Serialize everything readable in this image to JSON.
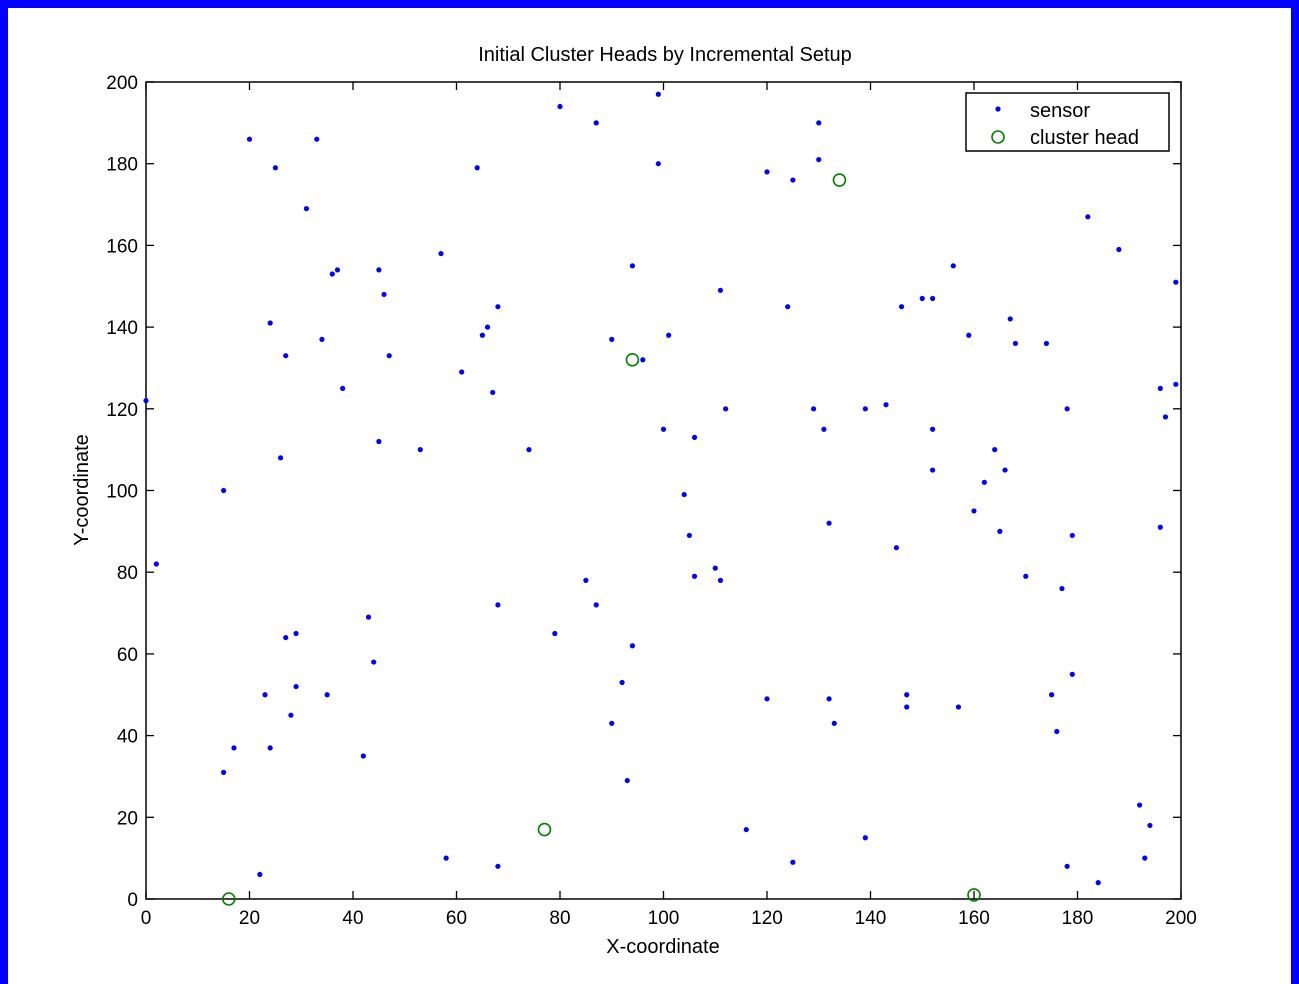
{
  "chart_data": {
    "type": "scatter",
    "title": "Initial Cluster Heads by Incremental Setup",
    "xlabel": "X-coordinate",
    "ylabel": "Y-coordinate",
    "xlim": [
      0,
      200
    ],
    "ylim": [
      0,
      200
    ],
    "xticks": [
      0,
      20,
      40,
      60,
      80,
      100,
      120,
      140,
      160,
      180,
      200
    ],
    "yticks": [
      0,
      20,
      40,
      60,
      80,
      100,
      120,
      140,
      160,
      180,
      200
    ],
    "grid": false,
    "legend_position": "top-right",
    "series": [
      {
        "name": "sensor",
        "marker": "point",
        "color": "#0000ff",
        "points": [
          [
            20,
            186
          ],
          [
            33,
            186
          ],
          [
            25,
            179
          ],
          [
            31,
            169
          ],
          [
            64,
            179
          ],
          [
            80,
            194
          ],
          [
            87,
            190
          ],
          [
            99,
            197
          ],
          [
            99,
            180
          ],
          [
            120,
            178
          ],
          [
            125,
            176
          ],
          [
            130,
            190
          ],
          [
            130,
            181
          ],
          [
            182,
            167
          ],
          [
            188,
            159
          ],
          [
            199,
            151
          ],
          [
            57,
            158
          ],
          [
            36,
            153
          ],
          [
            37,
            154
          ],
          [
            45,
            154
          ],
          [
            46,
            148
          ],
          [
            24,
            141
          ],
          [
            34,
            137
          ],
          [
            27,
            133
          ],
          [
            47,
            133
          ],
          [
            38,
            125
          ],
          [
            61,
            129
          ],
          [
            68,
            145
          ],
          [
            66,
            140
          ],
          [
            65,
            138
          ],
          [
            67,
            124
          ],
          [
            94,
            155
          ],
          [
            90,
            137
          ],
          [
            96,
            132
          ],
          [
            101,
            138
          ],
          [
            111,
            149
          ],
          [
            124,
            145
          ],
          [
            156,
            155
          ],
          [
            146,
            145
          ],
          [
            150,
            147
          ],
          [
            152,
            147
          ],
          [
            159,
            138
          ],
          [
            167,
            142
          ],
          [
            168,
            136
          ],
          [
            174,
            136
          ],
          [
            196,
            125
          ],
          [
            199,
            126
          ],
          [
            0,
            122
          ],
          [
            26,
            108
          ],
          [
            45,
            112
          ],
          [
            53,
            110
          ],
          [
            74,
            110
          ],
          [
            100,
            115
          ],
          [
            106,
            113
          ],
          [
            104,
            99
          ],
          [
            105,
            89
          ],
          [
            112,
            120
          ],
          [
            129,
            120
          ],
          [
            131,
            115
          ],
          [
            139,
            120
          ],
          [
            143,
            121
          ],
          [
            152,
            115
          ],
          [
            152,
            105
          ],
          [
            164,
            110
          ],
          [
            166,
            105
          ],
          [
            162,
            102
          ],
          [
            160,
            95
          ],
          [
            165,
            90
          ],
          [
            178,
            120
          ],
          [
            197,
            118
          ],
          [
            196,
            91
          ],
          [
            179,
            89
          ],
          [
            15,
            100
          ],
          [
            2,
            82
          ],
          [
            132,
            92
          ],
          [
            145,
            86
          ],
          [
            106,
            79
          ],
          [
            110,
            81
          ],
          [
            111,
            78
          ],
          [
            85,
            78
          ],
          [
            87,
            72
          ],
          [
            68,
            72
          ],
          [
            79,
            65
          ],
          [
            94,
            62
          ],
          [
            43,
            69
          ],
          [
            27,
            64
          ],
          [
            29,
            65
          ],
          [
            44,
            58
          ],
          [
            23,
            50
          ],
          [
            29,
            52
          ],
          [
            35,
            50
          ],
          [
            28,
            45
          ],
          [
            92,
            53
          ],
          [
            90,
            43
          ],
          [
            120,
            49
          ],
          [
            132,
            49
          ],
          [
            133,
            43
          ],
          [
            147,
            50
          ],
          [
            147,
            47
          ],
          [
            157,
            47
          ],
          [
            175,
            50
          ],
          [
            179,
            55
          ],
          [
            176,
            41
          ],
          [
            177,
            76
          ],
          [
            170,
            79
          ],
          [
            17,
            37
          ],
          [
            24,
            37
          ],
          [
            15,
            31
          ],
          [
            42,
            35
          ],
          [
            93,
            29
          ],
          [
            116,
            17
          ],
          [
            125,
            9
          ],
          [
            139,
            15
          ],
          [
            58,
            10
          ],
          [
            68,
            8
          ],
          [
            22,
            6
          ],
          [
            178,
            8
          ],
          [
            184,
            4
          ],
          [
            192,
            23
          ],
          [
            194,
            18
          ],
          [
            193,
            10
          ]
        ]
      },
      {
        "name": "cluster head",
        "marker": "circle",
        "color": "#008000",
        "points": [
          [
            134,
            176
          ],
          [
            94,
            132
          ],
          [
            77,
            17
          ],
          [
            16,
            0
          ],
          [
            160,
            1
          ]
        ]
      }
    ]
  }
}
